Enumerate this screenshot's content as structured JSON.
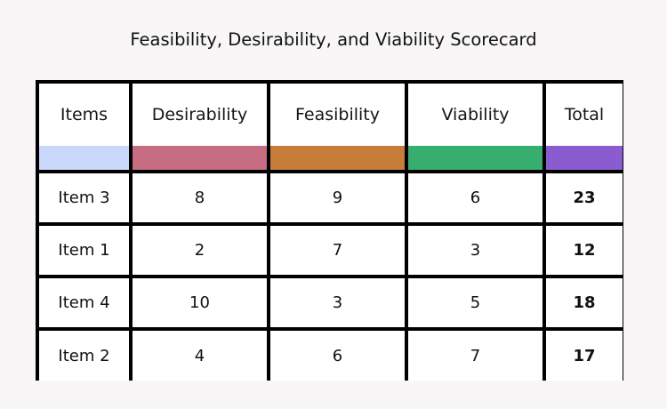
{
  "title": "Feasibility, Desirability, and Viability Scorecard",
  "columns": [
    {
      "label": "Items",
      "color": "#c9d8fb"
    },
    {
      "label": "Desirability",
      "color": "#c66d81"
    },
    {
      "label": "Feasibility",
      "color": "#c57d39"
    },
    {
      "label": "Viability",
      "color": "#37ad6f"
    },
    {
      "label": "Total",
      "color": "#8a5ccf"
    }
  ],
  "rows": [
    {
      "item": "Item 3",
      "desirability": "8",
      "feasibility": "9",
      "viability": "6",
      "total": "23"
    },
    {
      "item": "Item 1",
      "desirability": "2",
      "feasibility": "7",
      "viability": "3",
      "total": "12"
    },
    {
      "item": "Item 4",
      "desirability": "10",
      "feasibility": "3",
      "viability": "5",
      "total": "18"
    },
    {
      "item": "Item 2",
      "desirability": "4",
      "feasibility": "6",
      "viability": "7",
      "total": "17"
    }
  ]
}
